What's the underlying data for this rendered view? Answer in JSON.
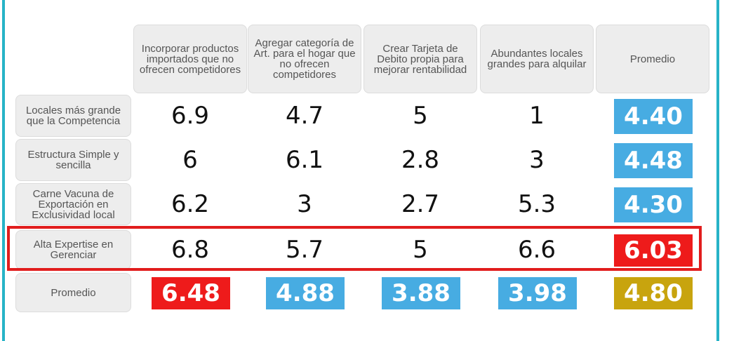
{
  "table": {
    "columns": [
      "Incorporar productos importados que no ofrecen competidores",
      "Agregar categoría de Art. para el hogar que no ofrecen competidores",
      "Crear Tarjeta de Debito propia para mejorar rentabilidad",
      "Abundantes locales grandes para alquilar",
      "Promedio"
    ],
    "rows": [
      {
        "label": "Locales más grande que la Competencia",
        "cells": [
          "6.9",
          "4.7",
          "5",
          "1"
        ],
        "average": {
          "text": "4.40",
          "color": "#47ace2"
        }
      },
      {
        "label": "Estructura Simple y sencilla",
        "cells": [
          "6",
          "6.1",
          "2.8",
          "3"
        ],
        "average": {
          "text": "4.48",
          "color": "#47ace2"
        }
      },
      {
        "label": "Carne Vacuna de Exportación en Exclusividad local",
        "cells": [
          "6.2",
          "3",
          "2.7",
          "5.3"
        ],
        "average": {
          "text": "4.30",
          "color": "#47ace2"
        }
      },
      {
        "label": "Alta Expertise en Gerenciar",
        "cells": [
          "6.8",
          "5.7",
          "5",
          "6.6"
        ],
        "average": {
          "text": "6.03",
          "color": "#ee1b1b"
        }
      }
    ],
    "average_row": {
      "label": "Promedio",
      "cells": [
        {
          "text": "6.48",
          "color": "#ee1b1b"
        },
        {
          "text": "4.88",
          "color": "#47ace2"
        },
        {
          "text": "3.88",
          "color": "#47ace2"
        },
        {
          "text": "3.98",
          "color": "#47ace2"
        },
        {
          "text": "4.80",
          "color": "#c8a40e"
        }
      ]
    },
    "highlighted_row": 3,
    "highlight_color": "#e11d1d"
  }
}
